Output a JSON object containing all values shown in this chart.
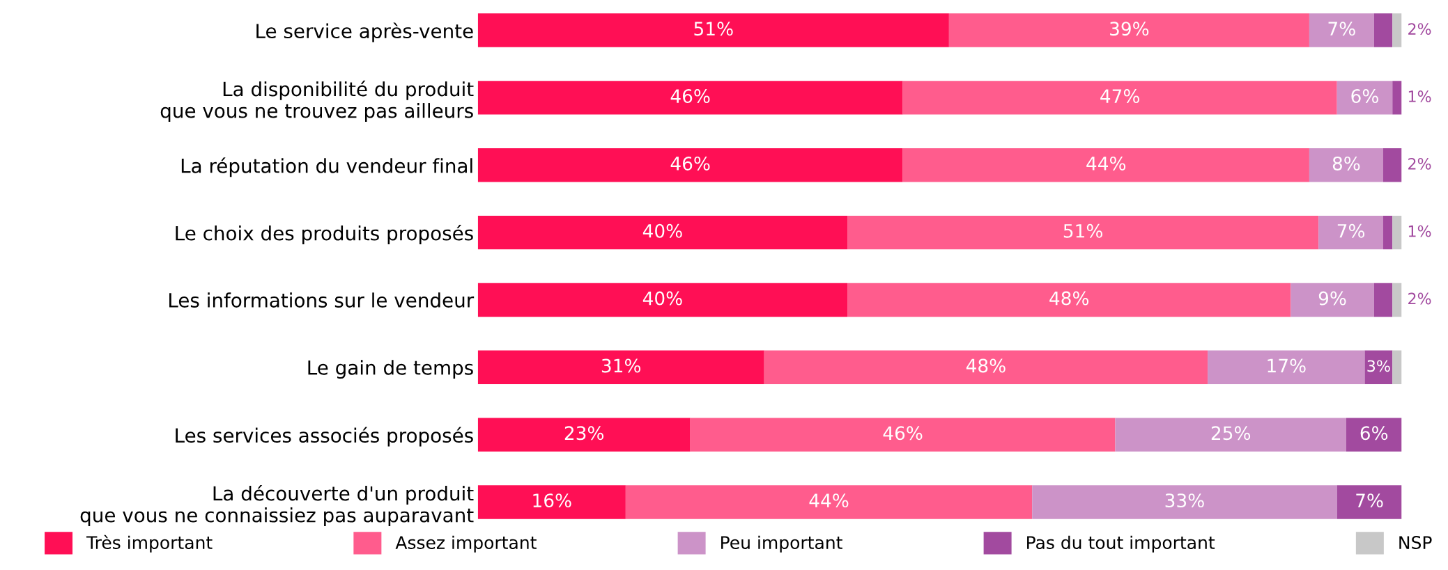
{
  "chart_data": {
    "type": "bar",
    "orientation": "horizontal",
    "stacked": true,
    "categories": [
      "Le service après-vente",
      "La disponibilité du produit\nque vous ne trouvez pas ailleurs",
      "La réputation du vendeur final",
      "Le choix des produits proposés",
      "Les informations sur le vendeur",
      "Le gain de temps",
      "Les services associés proposés",
      "La découverte d'un produit\nque vous ne connaissiez pas auparavant"
    ],
    "xlim": [
      0,
      100
    ],
    "tick_labels": "y",
    "legend": "bottom",
    "grid": false,
    "series": [
      {
        "name": "Très important",
        "color": "#ff0f55",
        "values": [
          51,
          46,
          46,
          40,
          40,
          31,
          23,
          16
        ],
        "value_labels": [
          "51%",
          "46%",
          "46%",
          "40%",
          "40%",
          "31%",
          "23%",
          "16%"
        ]
      },
      {
        "name": "Assez important",
        "color": "#ff5c8d",
        "values": [
          39,
          47,
          44,
          51,
          48,
          48,
          46,
          44
        ],
        "value_labels": [
          "39%",
          "47%",
          "44%",
          "51%",
          "48%",
          "48%",
          "46%",
          "44%"
        ]
      },
      {
        "name": "Peu important",
        "color": "#cc93c8",
        "values": [
          7,
          6,
          8,
          7,
          9,
          17,
          25,
          33
        ],
        "value_labels": [
          "7%",
          "6%",
          "8%",
          "7%",
          "9%",
          "17%",
          "25%",
          "33%"
        ]
      },
      {
        "name": "Pas du tout important",
        "color": "#a24a9f",
        "values": [
          2,
          1,
          2,
          1,
          2,
          3,
          6,
          7
        ],
        "value_labels": [
          "2%",
          "1%",
          "2%",
          "1%",
          "2%",
          "3%",
          "6%",
          "7%"
        ]
      },
      {
        "name": "NSP",
        "color": "#c8c8c8",
        "values": [
          1,
          null,
          null,
          1,
          1,
          1,
          null,
          null
        ]
      }
    ]
  }
}
